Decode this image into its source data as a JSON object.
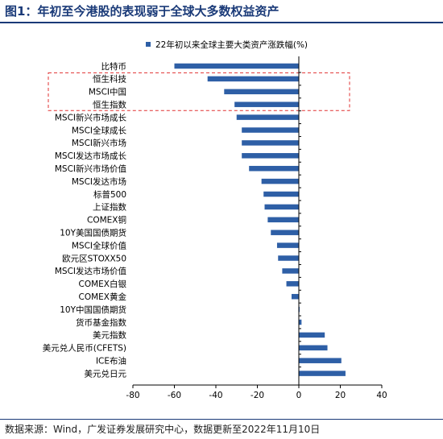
{
  "figure": {
    "title": "图1：年初至今港股的表现弱于全球大多数权益资产",
    "source": "数据来源：Wind，广发证券发展研究中心，数据更新至2022年11月10日"
  },
  "colors": {
    "bar": "#2e5fa6",
    "title": "#1a3a78",
    "highlight_box": "#e03030",
    "axis": "#000000"
  },
  "chart_data": {
    "type": "bar",
    "orientation": "horizontal",
    "title": "",
    "xlabel": "",
    "ylabel": "",
    "xlim": [
      -80,
      40
    ],
    "xticks": [
      -80,
      -60,
      -40,
      -20,
      0,
      20,
      40
    ],
    "grid": false,
    "legend_position": "top-center",
    "highlighted_categories": [
      "恒生科技",
      "MSCI中国",
      "恒生指数"
    ],
    "categories": [
      "比特币",
      "恒生科技",
      "MSCI中国",
      "恒生指数",
      "MSCI新兴市场成长",
      "MSCI全球成长",
      "MSCI新兴市场",
      "MSCI发达市场成长",
      "MSCI新兴市场价值",
      "MSCI发达市场",
      "标普500",
      "上证指数",
      "COMEX铜",
      "10Y美国国债期货",
      "MSCI全球价值",
      "欧元区STOXX50",
      "MSCI发达市场价值",
      "COMEX白银",
      "COMEX黄金",
      "10Y中国国债期货",
      "货币基金指数",
      "美元指数",
      "美元兑人民币(CFETS)",
      "ICE布油",
      "美元兑日元"
    ],
    "series": [
      {
        "name": "22年初以来全球主要大类资产涨跌幅(%)",
        "values": [
          -60,
          -44,
          -36,
          -31,
          -30,
          -27.5,
          -27.5,
          -27.5,
          -24,
          -18,
          -17,
          -16.5,
          -15,
          -13.5,
          -10.5,
          -10,
          -8,
          -6,
          -3.5,
          0.3,
          1.3,
          12.5,
          13.8,
          20.5,
          22.5
        ]
      }
    ]
  }
}
